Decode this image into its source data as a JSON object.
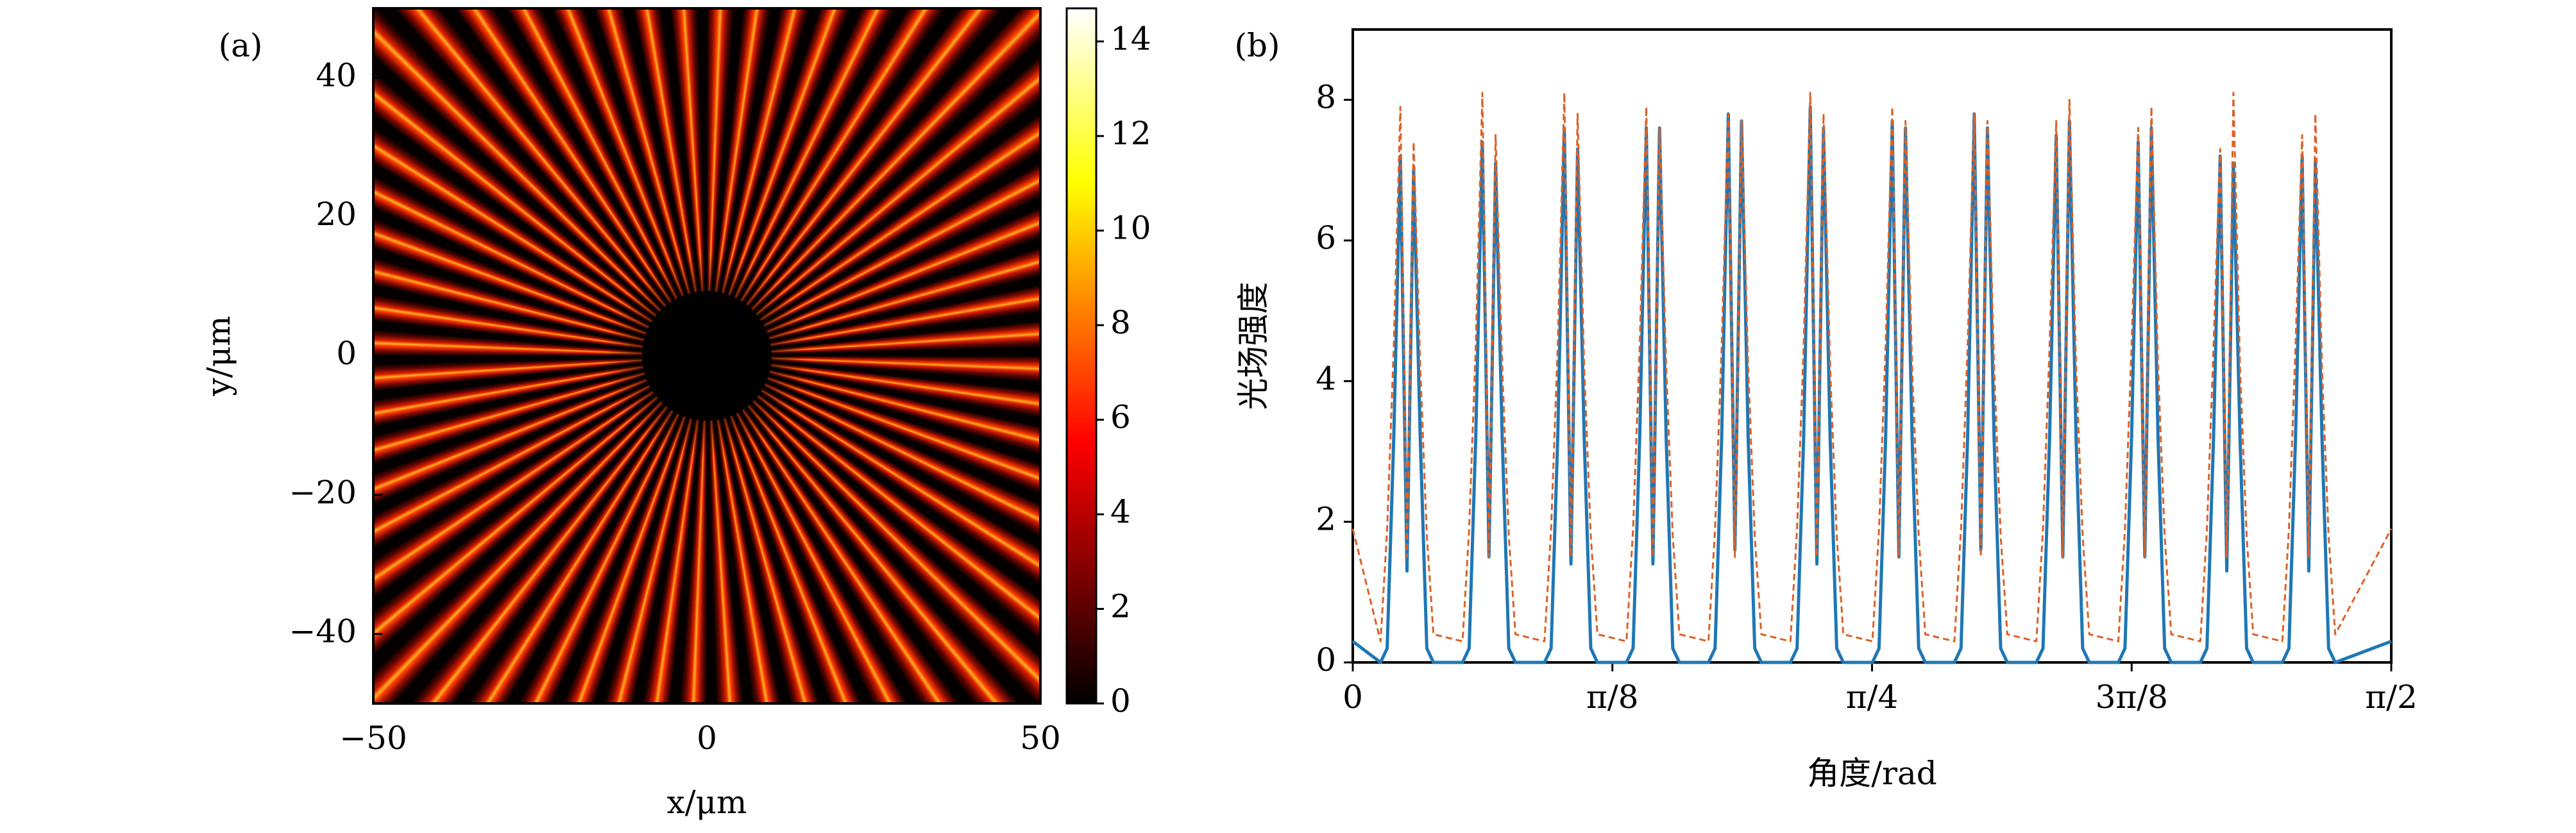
{
  "chart_data": [
    {
      "type": "heatmap",
      "panel_label": "(a)",
      "xlabel": "x/μm",
      "ylabel": "y/μm",
      "xlim": [
        -50,
        50
      ],
      "ylim": [
        -50,
        50
      ],
      "xticks": [
        {
          "value": -50,
          "label": "−50"
        },
        0,
        50
      ],
      "yticks": [
        {
          "value": -40,
          "label": "−40"
        },
        {
          "value": -20,
          "label": "−20"
        },
        0,
        20,
        40
      ],
      "colormap": "hot",
      "colorbar": {
        "lim": [
          0,
          14.7
        ],
        "ticks": [
          0,
          2,
          4,
          6,
          8,
          10,
          12,
          14
        ]
      }
    },
    {
      "type": "line",
      "panel_label": "(b)",
      "xlabel": "角度/rad",
      "ylabel": "光场强度",
      "xlim": [
        0,
        1.5708
      ],
      "ylim": [
        0,
        9
      ],
      "xticks": [
        0,
        {
          "value": 0.3927,
          "label": "π/8"
        },
        {
          "value": 0.7854,
          "label": "π/4"
        },
        {
          "value": 1.1781,
          "label": "3π/8"
        },
        {
          "value": 1.5708,
          "label": "π/2"
        }
      ],
      "yticks": [
        0,
        2,
        4,
        6,
        8
      ],
      "x": [
        0,
        0.042,
        0.052,
        0.062,
        0.072,
        0.082,
        0.092,
        0.102,
        0.112,
        0.122,
        0.166,
        0.176,
        0.186,
        0.196,
        0.206,
        0.216,
        0.226,
        0.236,
        0.246,
        0.29,
        0.3,
        0.31,
        0.32,
        0.33,
        0.34,
        0.35,
        0.36,
        0.37,
        0.414,
        0.424,
        0.434,
        0.444,
        0.454,
        0.464,
        0.474,
        0.484,
        0.494,
        0.538,
        0.548,
        0.558,
        0.568,
        0.578,
        0.588,
        0.598,
        0.608,
        0.618,
        0.662,
        0.672,
        0.682,
        0.692,
        0.702,
        0.712,
        0.722,
        0.732,
        0.742,
        0.786,
        0.796,
        0.806,
        0.816,
        0.826,
        0.836,
        0.846,
        0.856,
        0.866,
        0.91,
        0.92,
        0.93,
        0.94,
        0.95,
        0.96,
        0.97,
        0.98,
        0.99,
        1.034,
        1.044,
        1.054,
        1.064,
        1.074,
        1.084,
        1.094,
        1.104,
        1.114,
        1.158,
        1.168,
        1.178,
        1.188,
        1.198,
        1.208,
        1.218,
        1.228,
        1.238,
        1.282,
        1.292,
        1.302,
        1.312,
        1.322,
        1.332,
        1.342,
        1.352,
        1.362,
        1.406,
        1.416,
        1.426,
        1.436,
        1.446,
        1.456,
        1.466,
        1.476,
        1.486,
        1.5708
      ],
      "series": [
        {
          "color": "#1f77b4",
          "style": "solid",
          "values": [
            0.3,
            0,
            0.2,
            3.2,
            7.2,
            1.3,
            7.0,
            3.2,
            0.2,
            0,
            0,
            0.2,
            3.2,
            7.4,
            1.5,
            7.1,
            3.2,
            0.2,
            0,
            0,
            0.2,
            3.2,
            7.6,
            1.4,
            7.3,
            3.2,
            0.2,
            0,
            0,
            0.2,
            3.2,
            7.6,
            1.4,
            7.6,
            3.2,
            0.2,
            0,
            0,
            0.2,
            3.2,
            7.8,
            1.6,
            7.7,
            3.2,
            0.2,
            0,
            0,
            0.2,
            3.2,
            7.9,
            1.4,
            7.6,
            3.2,
            0.2,
            0,
            0,
            0.2,
            3.2,
            7.7,
            1.5,
            7.6,
            3.2,
            0.2,
            0,
            0,
            0.2,
            3.2,
            7.8,
            1.6,
            7.6,
            3.2,
            0.2,
            0,
            0,
            0.2,
            3.2,
            7.5,
            1.5,
            7.7,
            3.2,
            0.2,
            0,
            0,
            0.2,
            3.2,
            7.4,
            1.5,
            7.6,
            3.2,
            0.2,
            0,
            0,
            0.2,
            3.2,
            7.2,
            1.3,
            7.1,
            3.2,
            0.2,
            0,
            0,
            0.2,
            3.2,
            7.2,
            1.3,
            7.1,
            3.2,
            0.2,
            0,
            0.3
          ]
        },
        {
          "color": "#d9622b",
          "style": "dashed",
          "values": [
            1.9,
            0.3,
            1.9,
            4.5,
            7.9,
            1.5,
            7.4,
            4.2,
            1.8,
            0.4,
            0.3,
            1.9,
            4.5,
            8.1,
            1.5,
            7.5,
            4.2,
            1.8,
            0.4,
            0.3,
            1.9,
            4.5,
            8.1,
            1.5,
            7.8,
            4.2,
            1.8,
            0.4,
            0.3,
            1.9,
            4.5,
            7.9,
            1.5,
            7.6,
            4.2,
            1.8,
            0.4,
            0.3,
            1.9,
            4.5,
            7.8,
            1.5,
            7.7,
            4.2,
            1.8,
            0.4,
            0.3,
            1.9,
            4.5,
            8.1,
            1.5,
            7.8,
            4.2,
            1.8,
            0.4,
            0.3,
            1.9,
            4.5,
            7.9,
            1.5,
            7.7,
            4.2,
            1.8,
            0.4,
            0.3,
            1.9,
            4.5,
            7.8,
            1.5,
            7.7,
            4.2,
            1.8,
            0.4,
            0.3,
            1.9,
            4.5,
            7.7,
            1.5,
            8.0,
            4.2,
            1.8,
            0.4,
            0.3,
            1.9,
            4.5,
            7.6,
            1.5,
            7.9,
            4.2,
            1.8,
            0.4,
            0.3,
            1.9,
            4.5,
            7.3,
            1.5,
            8.1,
            4.2,
            1.8,
            0.4,
            0.3,
            1.9,
            4.5,
            7.5,
            1.5,
            7.8,
            4.2,
            1.8,
            0.4,
            1.9
          ]
        }
      ]
    }
  ]
}
